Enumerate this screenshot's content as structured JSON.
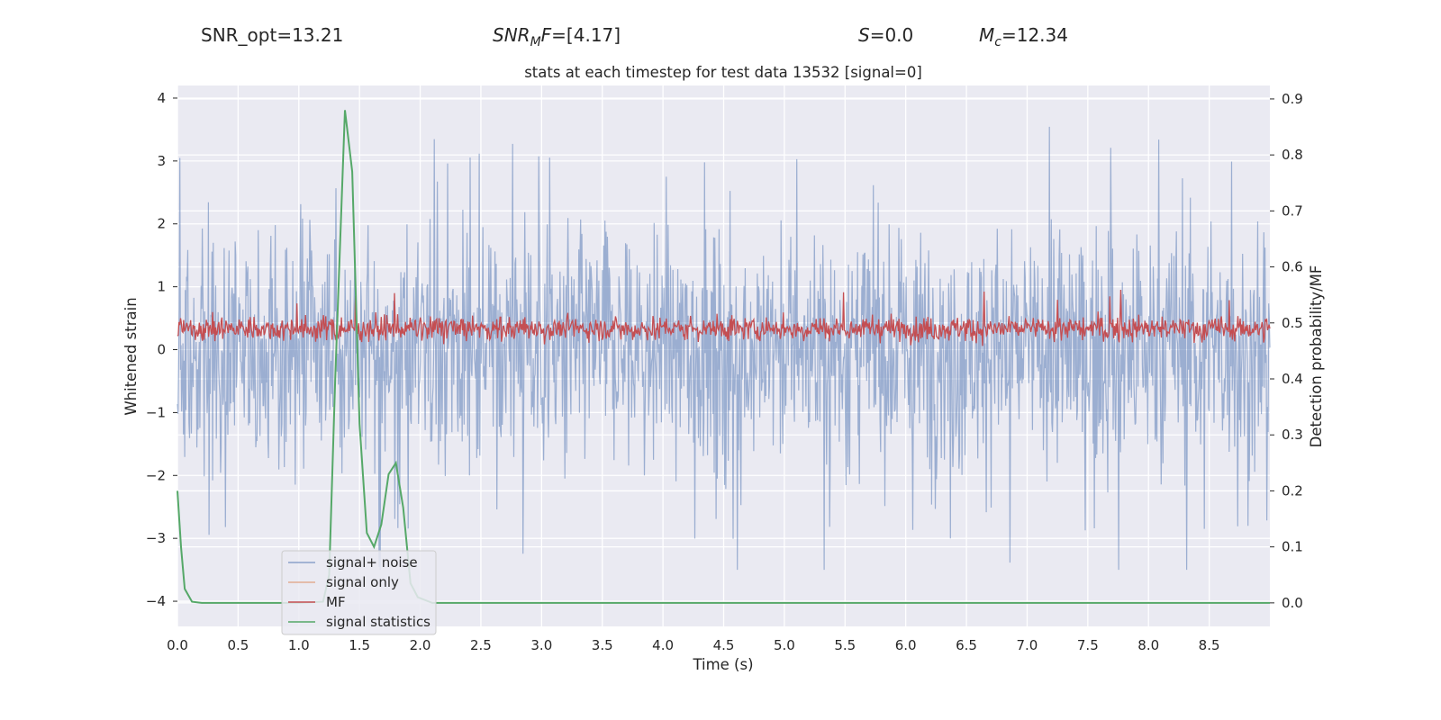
{
  "header": {
    "snr_opt": "SNR_opt=13.21",
    "snr_mf_base": "SNR",
    "snr_mf_sub": "M",
    "snr_mf_rest": "F",
    "snr_mf_value": "=[4.17]",
    "s_symbol": "S",
    "s_value": "=0.0",
    "mc_symbol": "M",
    "mc_sub": "c",
    "mc_value": "=12.34"
  },
  "chart_data": {
    "type": "line",
    "title": "stats at each timestep for test data 13532 [signal=0]",
    "xlabel": "Time (s)",
    "ylabel": "Whitened strain",
    "y2label": "Detection probability/MF",
    "xlim": [
      0.0,
      9.0
    ],
    "ylim": [
      -4.4,
      4.2
    ],
    "y2lim": [
      -0.042,
      0.924
    ],
    "xticks": [
      "0.0",
      "0.5",
      "1.0",
      "1.5",
      "2.0",
      "2.5",
      "3.0",
      "3.5",
      "4.0",
      "4.5",
      "5.0",
      "5.5",
      "6.0",
      "6.5",
      "7.0",
      "7.5",
      "8.0",
      "8.5"
    ],
    "yticks": [
      "4",
      "3",
      "2",
      "1",
      "0",
      "−1",
      "−2",
      "−3",
      "−4"
    ],
    "y2ticks": [
      "0.9",
      "0.8",
      "0.7",
      "0.6",
      "0.5",
      "0.4",
      "0.3",
      "0.2",
      "0.1",
      "0.0"
    ],
    "grid": true,
    "legend_position": "lower-left",
    "colors": {
      "noise": "#4c72b0",
      "signal": "#dd8452",
      "mf": "#c44e52",
      "stat": "#55a868",
      "background": "#eaeaf2"
    },
    "series": [
      {
        "name": "signal+ noise",
        "axis": "left",
        "description_values": "dense whitened strain, approx +/-2.3 with spikes to 3.85 and -3.5"
      },
      {
        "name": "signal only",
        "axis": "left",
        "values": []
      },
      {
        "name": "MF",
        "axis": "right",
        "values_range": [
          0.45,
          0.53
        ]
      },
      {
        "name": "signal statistics",
        "axis": "right",
        "x": [
          0.0,
          0.03,
          0.06,
          0.12,
          0.2,
          0.3,
          0.5,
          0.8,
          1.0,
          1.2,
          1.25,
          1.3,
          1.38,
          1.44,
          1.5,
          1.56,
          1.62,
          1.68,
          1.74,
          1.8,
          1.86,
          1.92,
          1.98,
          2.1,
          2.5,
          9.0
        ],
        "values": [
          0.2,
          0.1,
          0.025,
          0.002,
          0.0,
          0.0,
          0.0,
          0.0,
          0.0,
          0.002,
          0.05,
          0.4,
          0.88,
          0.77,
          0.32,
          0.125,
          0.1,
          0.14,
          0.23,
          0.25,
          0.17,
          0.035,
          0.01,
          0.0,
          0.0,
          0.0
        ]
      }
    ]
  }
}
